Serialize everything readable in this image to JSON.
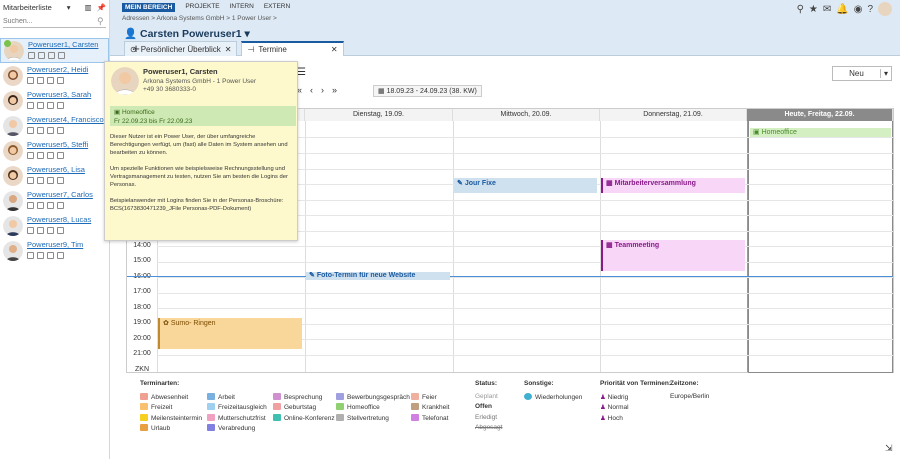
{
  "sidebar": {
    "title": "Mitarbeiterliste",
    "search_placeholder": "Suchen...",
    "users": [
      "Poweruser1, Carsten",
      "Poweruser2, Heidi",
      "Poweruser3, Sarah",
      "Poweruser4, Francisco",
      "Poweruser5, Steffi",
      "Poweruser6, Lisa",
      "Poweruser7, Carlos",
      "Poweruser8, Lucas",
      "Poweruser9, Tim"
    ]
  },
  "nav": {
    "items": [
      "MEIN BEREICH",
      "PROJEKTE",
      "INTERN",
      "EXTERN"
    ]
  },
  "breadcrumb": [
    "Adressen",
    "Arkona Systems GmbH",
    "1 Power User"
  ],
  "page_title": "Carsten Poweruser1",
  "tabs": [
    "Persönlicher Überblick",
    "Termine"
  ],
  "toolbar": {
    "new_label": "Neu",
    "date_range": "18.09.23 - 24.09.23 (38. KW)"
  },
  "days": [
    "Dienstag, 19.09.",
    "Mittwoch, 20.09.",
    "Donnerstag, 21.09.",
    "Heute, Freitag, 22.09."
  ],
  "hours": [
    "14:00",
    "15:00",
    "16:00",
    "17:00",
    "18:00",
    "19:00",
    "20:00",
    "21:00",
    "ZKN"
  ],
  "events": {
    "homeoffice": "Homeoffice",
    "jourfixe": "Jour Fixe",
    "mv": "Mitarbeiterversammlung",
    "team": "Teammeeting",
    "foto": "Foto-Termin für neue Website",
    "sumo": "Sumo- Ringen"
  },
  "tooltip": {
    "name": "Poweruser1, Carsten",
    "company": "Arkona Systems GmbH - 1 Power User",
    "phone": "+49 30 3680333-0",
    "status": "Homeoffice",
    "status_range": "Fr 22.09.23 bis Fr 22.09.23",
    "p1": "Dieser Nutzer ist ein Power User, der über umfangreiche Berechtigungen verfügt, um (fast) alle Daten im System ansehen und bearbeiten zu können.",
    "p2": "Um spezielle Funktionen wie beispielsweise Rechnungsstellung und Vertragsmanagement zu testen, nutzen Sie am besten die Logins der Personas.",
    "p3": "Beispielanwender mit Logins finden Sie in der Personas-Broschüre:",
    "p4": "BCS(1673830471239_JFile Personas-PDF-Dokument)"
  },
  "legend": {
    "head_types": "Terminarten:",
    "types": [
      "Abwesenheit",
      "Freizeit",
      "Meilensteintermin",
      "Urlaub",
      "Arbeit",
      "Freizeitausgleich",
      "Mutterschutzfrist",
      "Verabredung",
      "Besprechung",
      "Geburtstag",
      "Online-Konferenz",
      "Bewerbungsgespräch",
      "Homeoffice",
      "Stellvertretung",
      "Feier",
      "Krankheit",
      "Telefonat"
    ],
    "head_status": "Status:",
    "status": [
      "Geplant",
      "Offen",
      "Erledigt",
      "Abgesagt"
    ],
    "head_other": "Sonstige:",
    "other": [
      "Wiederholungen"
    ],
    "head_prio": "Priorität von Terminen:",
    "prio": [
      "Niedrig",
      "Normal",
      "Hoch"
    ],
    "head_zone": "Zeitzone:",
    "zone": "Europe/Berlin"
  }
}
